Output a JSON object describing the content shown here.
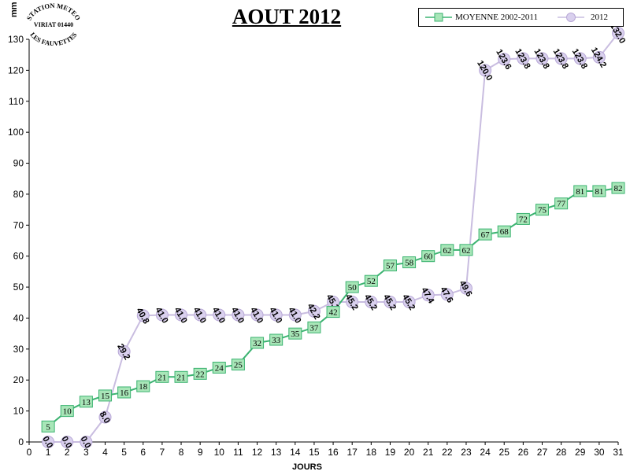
{
  "chart_data": {
    "type": "line",
    "title": "AOUT 2012",
    "xlabel": "JOURS",
    "ylabel": "mm",
    "xlim": [
      0,
      31
    ],
    "ylim": [
      0,
      130
    ],
    "x_ticks": [
      0,
      1,
      2,
      3,
      4,
      5,
      6,
      7,
      8,
      9,
      10,
      11,
      12,
      13,
      14,
      15,
      16,
      17,
      18,
      19,
      20,
      21,
      22,
      23,
      24,
      25,
      26,
      27,
      28,
      29,
      30,
      31
    ],
    "y_ticks": [
      0,
      10,
      20,
      30,
      40,
      50,
      60,
      70,
      80,
      90,
      100,
      110,
      120,
      130
    ],
    "grid": false,
    "legend_position": "top-right",
    "series": [
      {
        "name": "MOYENNE 2002-2011",
        "color": "#3cb371",
        "fill": "#a8e6b8",
        "marker": "square",
        "x": [
          1,
          2,
          3,
          4,
          5,
          6,
          7,
          8,
          9,
          10,
          11,
          12,
          13,
          14,
          15,
          16,
          17,
          18,
          19,
          20,
          21,
          22,
          23,
          24,
          25,
          26,
          27,
          28,
          29,
          30,
          31
        ],
        "values": [
          5,
          10,
          13,
          15,
          16,
          18,
          21,
          21,
          22,
          24,
          25,
          32,
          33,
          35,
          37,
          42,
          50,
          52,
          57,
          58,
          60,
          62,
          62,
          67,
          68,
          72,
          75,
          77,
          81,
          81,
          82
        ],
        "labels": [
          "5",
          "10",
          "13",
          "15",
          "16",
          "18",
          "21",
          "21",
          "22",
          "24",
          "25",
          "32",
          "33",
          "35",
          "37",
          "42",
          "50",
          "52",
          "57",
          "58",
          "60",
          "62",
          "62",
          "67",
          "68",
          "72",
          "75",
          "77",
          "81",
          "81",
          "82"
        ]
      },
      {
        "name": "2012",
        "color": "#c9bde0",
        "fill": "#d9d0ee",
        "marker": "circle",
        "x": [
          1,
          2,
          3,
          4,
          5,
          6,
          7,
          8,
          9,
          10,
          11,
          12,
          13,
          14,
          15,
          16,
          17,
          18,
          19,
          20,
          21,
          22,
          23,
          24,
          25,
          26,
          27,
          28,
          29,
          30,
          31
        ],
        "values": [
          0.0,
          0.0,
          0.0,
          8.0,
          29.2,
          40.8,
          41.0,
          41.0,
          41.0,
          41.0,
          41.0,
          41.0,
          41.0,
          41.0,
          42.2,
          45.2,
          45.2,
          45.2,
          45.2,
          45.2,
          47.4,
          47.6,
          49.6,
          120.0,
          123.6,
          123.8,
          123.8,
          123.8,
          123.8,
          124.2,
          132.0
        ],
        "labels": [
          "0.0",
          "0.0",
          "0.0",
          "8.0",
          "29.2",
          "40.8",
          "41.0",
          "41.0",
          "41.0",
          "41.0",
          "41.0",
          "41.0",
          "41.0",
          "41.0",
          "42.2",
          "45.2",
          "45.2",
          "45.2",
          "45.2",
          "45.2",
          "47.4",
          "47.6",
          "49.6",
          "120.0",
          "123.6",
          "123.8",
          "123.8",
          "123.8",
          "123.8",
          "124.2",
          "132.0"
        ]
      }
    ]
  },
  "stamp": {
    "lines": [
      "STATION METEO",
      "VIRIAT 01440",
      "LES FAUVETTES"
    ]
  }
}
